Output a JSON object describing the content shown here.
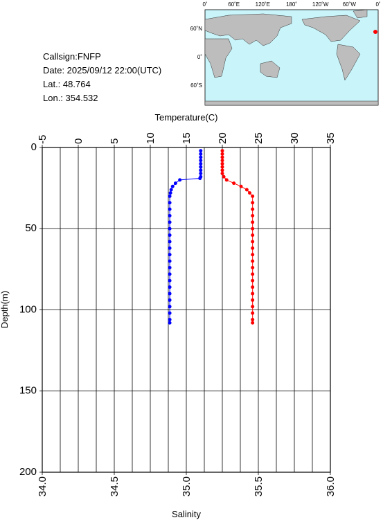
{
  "info": {
    "callsign": "Callsign:FNFP",
    "date": "Date:  2025/09/12 22:00(UTC)",
    "lat": "Lat.:  48.764",
    "lon": "Lon.:  354.532"
  },
  "map": {
    "lon_labels": [
      "0˚",
      "60˚E",
      "120˚E",
      "180˚",
      "120˚W",
      "60˚W",
      "0˚"
    ],
    "lat_labels": [
      "60˚N",
      "0˚",
      "60˚S"
    ]
  },
  "chart_data": {
    "type": "profile",
    "xlabel": "Temperature(C)",
    "x2label": "Salinity",
    "ylabel": "Depth(m)",
    "xlim": [
      -5,
      35
    ],
    "xticks": [
      -5,
      0,
      5,
      10,
      15,
      20,
      25,
      30,
      35
    ],
    "x2lim": [
      34,
      36
    ],
    "x2ticks": [
      {
        "value": 34,
        "label": "34.0"
      },
      34.5,
      {
        "value": 35,
        "label": "35.0"
      },
      35.5,
      {
        "value": 36,
        "label": "36.0"
      }
    ],
    "ylim": [
      0,
      200
    ],
    "yticks": [
      0,
      50,
      100,
      150,
      200
    ],
    "y_inverted": true,
    "grid": true,
    "series": [
      {
        "color": "#0000ff",
        "axis": "x",
        "x": [
          17.0,
          17.0,
          17.0,
          17.0,
          17.0,
          17.0,
          17.0,
          17.0,
          17.0,
          16.9,
          14.1,
          13.5,
          13.1,
          12.9,
          12.8,
          12.7,
          12.7,
          12.7,
          12.7,
          12.7,
          12.7,
          12.7,
          12.7,
          12.7,
          12.7,
          12.7,
          12.7,
          12.7,
          12.7,
          12.7,
          12.7,
          12.7,
          12.7,
          12.7,
          12.7,
          12.7
        ],
        "values": [
          2,
          4,
          6,
          8,
          10,
          12,
          14,
          16,
          18,
          19,
          20,
          22,
          24,
          26,
          28,
          30,
          34,
          38,
          42,
          46,
          50,
          54,
          58,
          62,
          66,
          70,
          74,
          78,
          82,
          86,
          90,
          94,
          98,
          102,
          106,
          108
        ]
      },
      {
        "color": "#ff0000",
        "axis": "x2",
        "x": [
          35.25,
          35.25,
          35.25,
          35.25,
          35.25,
          35.25,
          35.25,
          35.25,
          35.26,
          35.28,
          35.33,
          35.38,
          35.42,
          35.44,
          35.46,
          35.46,
          35.46,
          35.46,
          35.46,
          35.46,
          35.46,
          35.46,
          35.46,
          35.46,
          35.46,
          35.46,
          35.46,
          35.46,
          35.46,
          35.46,
          35.46,
          35.46,
          35.46,
          35.46,
          35.46
        ],
        "values": [
          2,
          4,
          6,
          8,
          10,
          12,
          14,
          16,
          18,
          20,
          22,
          24,
          26,
          28,
          30,
          34,
          38,
          42,
          46,
          50,
          54,
          58,
          62,
          66,
          70,
          74,
          78,
          82,
          86,
          90,
          94,
          98,
          102,
          106,
          108
        ]
      }
    ]
  }
}
